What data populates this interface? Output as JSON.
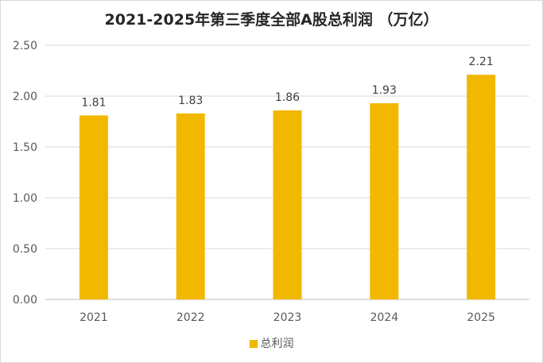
{
  "chart_data": {
    "type": "bar",
    "title": "2021-2025年第三季度全部A股总利润 （万亿）",
    "categories": [
      "2021",
      "2022",
      "2023",
      "2024",
      "2025"
    ],
    "series": [
      {
        "name": "总利润",
        "values": [
          1.81,
          1.83,
          1.86,
          1.93,
          2.21
        ]
      }
    ],
    "value_labels": [
      "1.81",
      "1.83",
      "1.86",
      "1.93",
      "2.21"
    ],
    "y_ticks": [
      "0.00",
      "0.50",
      "1.00",
      "1.50",
      "2.00",
      "2.50"
    ],
    "ylim": [
      0,
      2.5
    ],
    "xlabel": "",
    "ylabel": "",
    "grid": true,
    "legend_position": "bottom",
    "colors": {
      "bar": "#F2B800",
      "grid": "#d9d9d9"
    }
  }
}
